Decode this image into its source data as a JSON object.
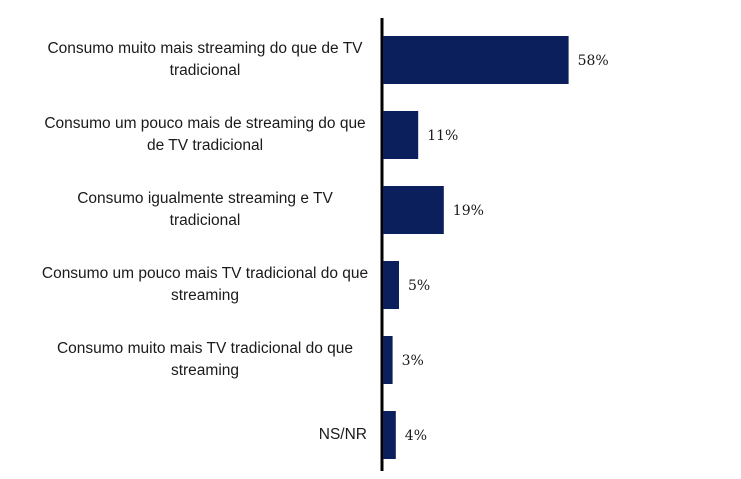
{
  "chart_data": {
    "type": "bar",
    "orientation": "horizontal",
    "categories": [
      "Consumo muito mais streaming do que de TV tradicional",
      "Consumo um pouco mais de streaming do que de TV tradicional",
      "Consumo igualmente streaming e TV tradicional",
      "Consumo um pouco mais TV tradicional do que streaming",
      "Consumo muito mais TV tradicional do que streaming",
      "NS/NR"
    ],
    "values": [
      58,
      11,
      19,
      5,
      3,
      4
    ],
    "value_labels": [
      "58%",
      "11%",
      "19%",
      "5%",
      "3%",
      "4%"
    ],
    "color": "#0a1f5c"
  }
}
